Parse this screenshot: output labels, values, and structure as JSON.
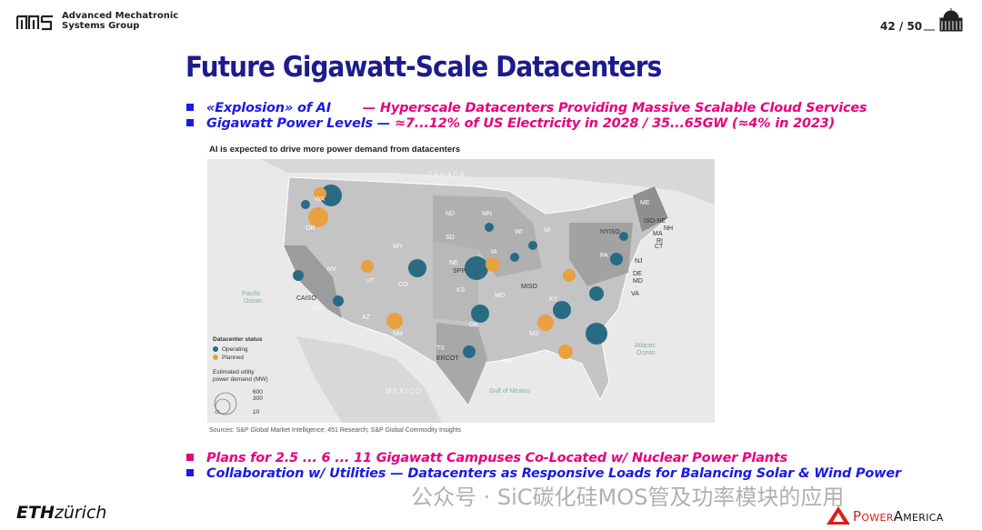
{
  "header": {
    "group": [
      "Advanced Mechatronic",
      "Systems Group"
    ],
    "page": "42 / 50"
  },
  "title": "Future Gigawatt-Scale Datacenters",
  "top_bullets": [
    {
      "lead": "«Explosion» of  AI",
      "dash": "—",
      "text": "Hyperscale Datacenters Providing Massive Scalable Cloud Services"
    },
    {
      "lead": "Gigawatt Power Levels",
      "dash": "—",
      "text": "≈7...12% of US Electricity in 2028 / 35...65GW (≈4% in 2023)"
    }
  ],
  "map": {
    "heading": "AI is expected to drive more power demand from datacenters",
    "geo": {
      "canada": "CANADA",
      "mexico": "MEXICO",
      "pacific": [
        "Pacific",
        "Ocean"
      ],
      "atlantic": [
        "Atlantic",
        "Ocean"
      ],
      "gulf": "Gulf of Mexico"
    },
    "regions": [
      "CAISO",
      "ERCOT",
      "SPP",
      "MISO",
      "NYISO",
      "ISO-NE"
    ],
    "states": [
      "WA",
      "OR",
      "CA",
      "NV",
      "UT",
      "AZ",
      "CO",
      "NM",
      "WY",
      "ND",
      "SD",
      "NE",
      "KS",
      "OK",
      "TX",
      "MN",
      "IA",
      "MO",
      "WI",
      "MI",
      "KY",
      "LA",
      "PA",
      "NJ",
      "DE",
      "MD",
      "VA",
      "CT",
      "RI",
      "MA",
      "NH",
      "ME",
      "MS"
    ],
    "legend": {
      "status": "Datacenter status",
      "operating": "Operating",
      "planned": "Planned",
      "demand": [
        "Estimated utility",
        "power demand (MW)"
      ],
      "sizes": [
        "600",
        "300",
        "10"
      ]
    },
    "source": "Sources: S&P Global Market Intelligence; 451 Research; S&P Global Commodity Insights"
  },
  "bottom_bullets": [
    {
      "text": "Plans for 2.5 ... 6 ... 11 Gigawatt Campuses Co-Located w/ Nuclear Power Plants"
    },
    {
      "lead": "Collaboration w/ Utilities",
      "dash": "—",
      "text": "Datacenters as Responsive Loads for Balancing Solar & Wind Power"
    }
  ],
  "watermark": "公众号 · SiC碳化硅MOS管及功率模块的应用",
  "footer": {
    "eth": "ETH",
    "zurich": "zürich",
    "power": "Power",
    "america": "America"
  }
}
